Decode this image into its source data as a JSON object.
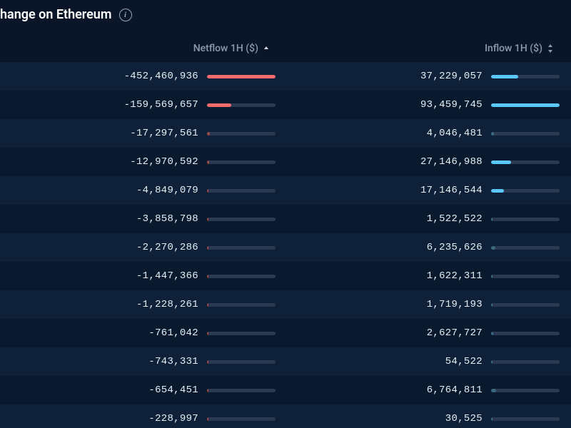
{
  "title_fragment": "hange on Ethereum",
  "colors": {
    "page_bg": "#0a1628",
    "row_odd_bg": "#0f2138",
    "row_even_bg": "#0a1a2e",
    "text_primary": "#e6edf5",
    "text_muted": "#8b99ae",
    "bar_track": "#2b3a52",
    "netflow_bar": "#f46b6b",
    "netflow_bar_dim": "#9a4a4a",
    "inflow_bar": "#5ac8fa",
    "inflow_bar_dim": "#3a6a82"
  },
  "columns": {
    "netflow": {
      "label": "Netflow 1H ($)",
      "sorted": "asc"
    },
    "inflow": {
      "label": "Inflow 1H ($)",
      "sorted": "none"
    }
  },
  "netflow_min": -452460936,
  "inflow_max": 93459745,
  "rows": [
    {
      "netflow": {
        "display": "-452,460,936",
        "value": -452460936
      },
      "inflow": {
        "display": "37,229,057",
        "value": 37229057
      }
    },
    {
      "netflow": {
        "display": "-159,569,657",
        "value": -159569657
      },
      "inflow": {
        "display": "93,459,745",
        "value": 93459745
      }
    },
    {
      "netflow": {
        "display": "-17,297,561",
        "value": -17297561
      },
      "inflow": {
        "display": "4,046,481",
        "value": 4046481
      }
    },
    {
      "netflow": {
        "display": "-12,970,592",
        "value": -12970592
      },
      "inflow": {
        "display": "27,146,988",
        "value": 27146988
      }
    },
    {
      "netflow": {
        "display": "-4,849,079",
        "value": -4849079
      },
      "inflow": {
        "display": "17,146,544",
        "value": 17146544
      }
    },
    {
      "netflow": {
        "display": "-3,858,798",
        "value": -3858798
      },
      "inflow": {
        "display": "1,522,522",
        "value": 1522522
      }
    },
    {
      "netflow": {
        "display": "-2,270,286",
        "value": -2270286
      },
      "inflow": {
        "display": "6,235,626",
        "value": 6235626
      }
    },
    {
      "netflow": {
        "display": "-1,447,366",
        "value": -1447366
      },
      "inflow": {
        "display": "1,622,311",
        "value": 1622311
      }
    },
    {
      "netflow": {
        "display": "-1,228,261",
        "value": -1228261
      },
      "inflow": {
        "display": "1,719,193",
        "value": 1719193
      }
    },
    {
      "netflow": {
        "display": "-761,042",
        "value": -761042
      },
      "inflow": {
        "display": "2,627,727",
        "value": 2627727
      }
    },
    {
      "netflow": {
        "display": "-743,331",
        "value": -743331
      },
      "inflow": {
        "display": "54,522",
        "value": 54522
      }
    },
    {
      "netflow": {
        "display": "-654,451",
        "value": -654451
      },
      "inflow": {
        "display": "6,764,811",
        "value": 6764811
      }
    },
    {
      "netflow": {
        "display": "-228,997",
        "value": -228997
      },
      "inflow": {
        "display": "30,525",
        "value": 30525
      }
    }
  ]
}
